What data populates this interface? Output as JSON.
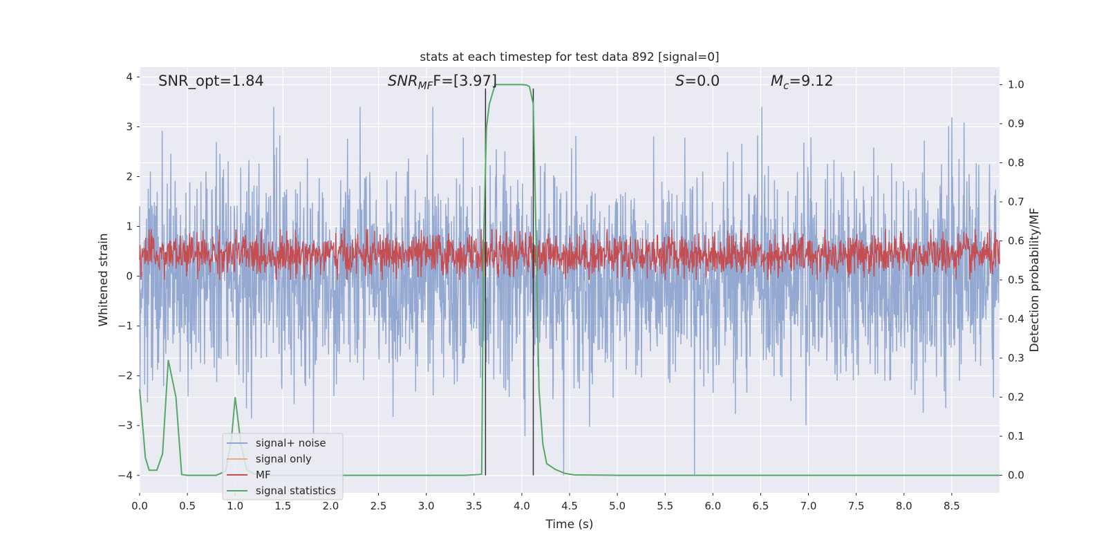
{
  "chart_data": {
    "type": "line",
    "title": "stats at each timestep for test data 892 [signal=0]",
    "xlabel": "Time (s)",
    "ylabel_left": "Whitened strain",
    "ylabel_right": "Detection probability/MF",
    "xlim": [
      0.0,
      9.0
    ],
    "ylim_left": [
      -4.35,
      4.2
    ],
    "ylim_right": [
      -0.045,
      1.045
    ],
    "x_ticks": [
      "0.0",
      "0.5",
      "1.0",
      "1.5",
      "2.0",
      "2.5",
      "3.0",
      "3.5",
      "4.0",
      "4.5",
      "5.0",
      "5.5",
      "6.0",
      "6.5",
      "7.0",
      "7.5",
      "8.0",
      "8.5"
    ],
    "y_ticks_left": [
      "4",
      "3",
      "2",
      "1",
      "0",
      "−1",
      "−2",
      "−3",
      "−4"
    ],
    "y_ticks_right": [
      "1.0",
      "0.9",
      "0.8",
      "0.7",
      "0.6",
      "0.5",
      "0.4",
      "0.3",
      "0.2",
      "0.1",
      "0.0"
    ],
    "grid": true,
    "annotations": [
      {
        "id": "snr-opt",
        "text": "SNR_opt=1.84"
      },
      {
        "id": "snr-mf",
        "text": "SNR",
        "sub": "MF",
        "tail": "F=[3.97]"
      },
      {
        "id": "s-val",
        "text": "S",
        "tail": "=0.0"
      },
      {
        "id": "mc-val",
        "text": "M",
        "sub": "c",
        "tail": "=9.12"
      }
    ],
    "vlines_x": [
      3.62,
      4.12
    ],
    "series": [
      {
        "name": "signal+ noise",
        "color": "#8fa5d0",
        "axis": "left",
        "style": "dense noise, amplitude ~ ±2.5 with spikes to ±4",
        "range": [
          -4.0,
          3.4
        ]
      },
      {
        "name": "signal only",
        "color": "#e5ae8a",
        "axis": "left",
        "values": []
      },
      {
        "name": "MF",
        "color": "#c44e52",
        "axis": "right",
        "style": "dense noise",
        "range": [
          0.5,
          0.63
        ]
      },
      {
        "name": "signal statistics",
        "color": "#55a868",
        "axis": "right",
        "x": [
          0.0,
          0.06,
          0.1,
          0.18,
          0.24,
          0.3,
          0.38,
          0.44,
          0.5,
          0.6,
          0.7,
          0.8,
          0.9,
          0.96,
          1.0,
          1.06,
          1.12,
          1.2,
          1.3,
          1.5,
          2.0,
          2.5,
          3.0,
          3.4,
          3.55,
          3.58,
          3.6,
          3.63,
          3.66,
          3.72,
          3.8,
          3.9,
          4.0,
          4.05,
          4.08,
          4.12,
          4.15,
          4.18,
          4.22,
          4.26,
          4.35,
          4.45,
          4.55,
          5.0,
          6.0,
          7.0,
          8.0,
          9.0
        ],
        "values": [
          0.22,
          0.045,
          0.013,
          0.013,
          0.055,
          0.295,
          0.2,
          0.002,
          0.0,
          0.0,
          0.0,
          0.0,
          0.01,
          0.09,
          0.2,
          0.08,
          0.015,
          0.003,
          0.0,
          0.0,
          0.0,
          0.0,
          0.0,
          0.0,
          0.002,
          0.003,
          0.6,
          0.89,
          0.95,
          1.0,
          1.0,
          1.0,
          1.0,
          0.999,
          0.995,
          0.95,
          0.6,
          0.22,
          0.08,
          0.03,
          0.015,
          0.005,
          0.001,
          0.0,
          0.0,
          0.0,
          0.0,
          0.0
        ]
      }
    ],
    "legend": {
      "position": "lower-left",
      "entries": [
        {
          "label": "signal+ noise",
          "color": "#8fa5d0"
        },
        {
          "label": "signal only",
          "color": "#e5ae8a"
        },
        {
          "label": "MF",
          "color": "#c44e52"
        },
        {
          "label": "signal statistics",
          "color": "#55a868"
        }
      ]
    },
    "colors": {
      "plot_background": "#eaeaf2",
      "grid": "#ffffff",
      "vline": "#333333"
    }
  }
}
